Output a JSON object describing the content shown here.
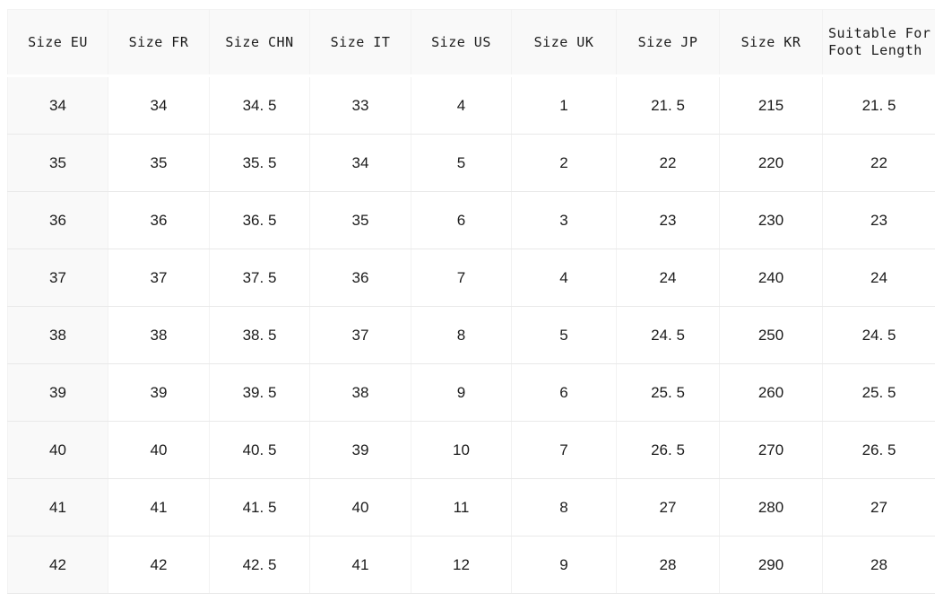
{
  "table": {
    "columns": [
      {
        "key": "eu",
        "label": "Size EU"
      },
      {
        "key": "fr",
        "label": "Size FR"
      },
      {
        "key": "chn",
        "label": "Size CHN"
      },
      {
        "key": "it",
        "label": "Size IT"
      },
      {
        "key": "us",
        "label": "Size US"
      },
      {
        "key": "uk",
        "label": "Size UK"
      },
      {
        "key": "jp",
        "label": "Size JP"
      },
      {
        "key": "kr",
        "label": "Size KR"
      },
      {
        "key": "foot",
        "label": "Suitable For Foot Length",
        "label_line1": "Suitable For",
        "label_line2": "Foot Length"
      }
    ],
    "rows": [
      [
        "34",
        "34",
        "34. 5",
        "33",
        "4",
        "1",
        "21. 5",
        "215",
        "21. 5"
      ],
      [
        "35",
        "35",
        "35. 5",
        "34",
        "5",
        "2",
        "22",
        "220",
        "22"
      ],
      [
        "36",
        "36",
        "36. 5",
        "35",
        "6",
        "3",
        "23",
        "230",
        "23"
      ],
      [
        "37",
        "37",
        "37. 5",
        "36",
        "7",
        "4",
        "24",
        "240",
        "24"
      ],
      [
        "38",
        "38",
        "38. 5",
        "37",
        "8",
        "5",
        "24. 5",
        "250",
        "24. 5"
      ],
      [
        "39",
        "39",
        "39. 5",
        "38",
        "9",
        "6",
        "25. 5",
        "260",
        "25. 5"
      ],
      [
        "40",
        "40",
        "40. 5",
        "39",
        "10",
        "7",
        "26. 5",
        "270",
        "26. 5"
      ],
      [
        "41",
        "41",
        "41. 5",
        "40",
        "11",
        "8",
        "27",
        "280",
        "27"
      ],
      [
        "42",
        "42",
        "42. 5",
        "41",
        "12",
        "9",
        "28",
        "290",
        "28"
      ]
    ]
  },
  "colors": {
    "page_background": "#ffffff",
    "header_background": "#f9f9f9",
    "row_header_background": "#f9f9f9",
    "cell_background": "#ffffff",
    "grid_line_vertical": "#f2f2f2",
    "grid_line_horizontal": "#e9e9e9",
    "text": "#1b1b1b"
  }
}
